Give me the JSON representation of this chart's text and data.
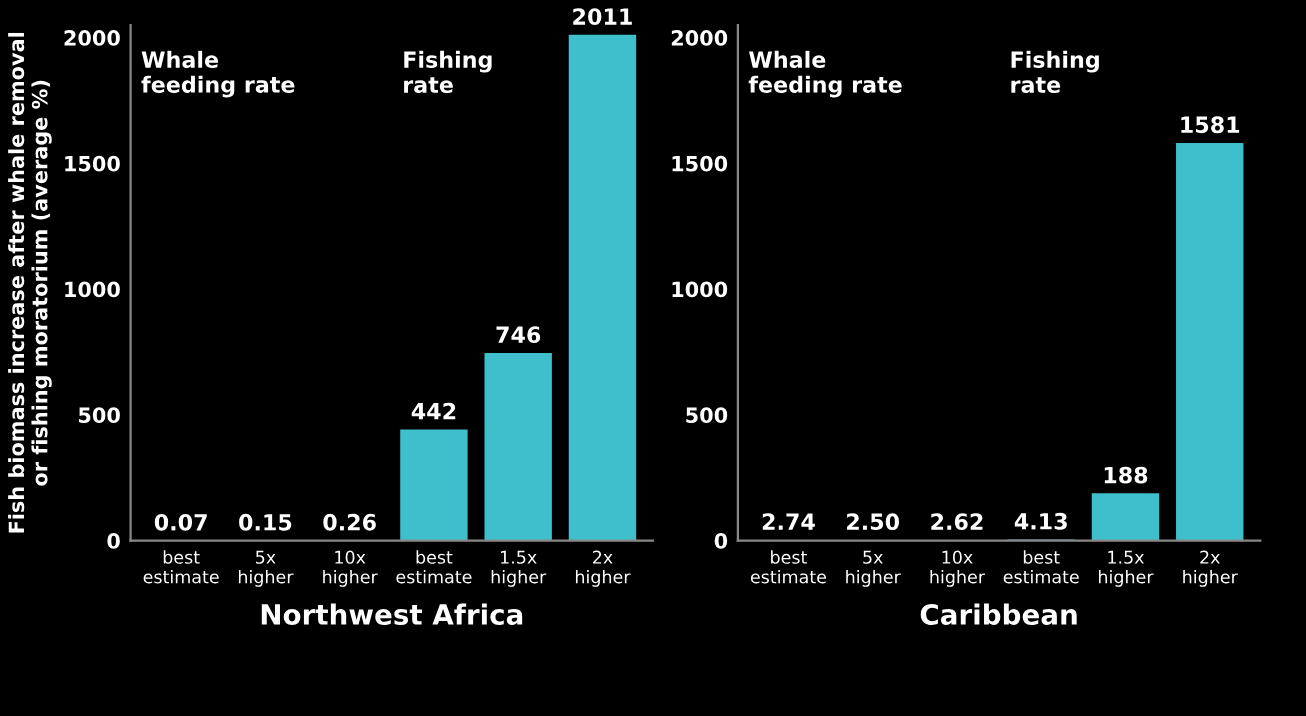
{
  "chart_data": [
    {
      "type": "bar",
      "xlabel": "Northwest Africa",
      "ylabel": "Fish biomass increase after whale removal\nor fishing moratorium (average %)",
      "categories": [
        "best\nestimate",
        "5x\nhigher",
        "10x\nhigher",
        "best\nestimate",
        "1.5x\nhigher",
        "2x\nhigher"
      ],
      "values": [
        0.07,
        0.15,
        0.26,
        442,
        746,
        2011
      ],
      "value_labels": [
        "0.07",
        "0.15",
        "0.26",
        "442",
        "746",
        "2011"
      ],
      "color": "#3fbfcc",
      "ylim": [
        0,
        2050
      ],
      "yticks": [
        0,
        500,
        1000,
        1500,
        2000
      ],
      "grid": false,
      "annotations": [
        "Whale\nfeeding rate",
        "Fishing\nrate"
      ]
    },
    {
      "type": "bar",
      "xlabel": "Caribbean",
      "categories": [
        "best\nestimate",
        "5x\nhigher",
        "10x\nhigher",
        "best\nestimate",
        "1.5x\nhigher",
        "2x\nhigher"
      ],
      "values": [
        2.74,
        2.5,
        2.62,
        4.13,
        188,
        1581
      ],
      "value_labels": [
        "2.74",
        "2.50",
        "2.62",
        "4.13",
        "188",
        "1581"
      ],
      "color": "#3fbfcc",
      "ylim": [
        0,
        2050
      ],
      "yticks": [
        0,
        500,
        1000,
        1500,
        2000
      ],
      "grid": false,
      "annotations": [
        "Whale\nfeeding rate",
        "Fishing\nrate"
      ]
    }
  ]
}
